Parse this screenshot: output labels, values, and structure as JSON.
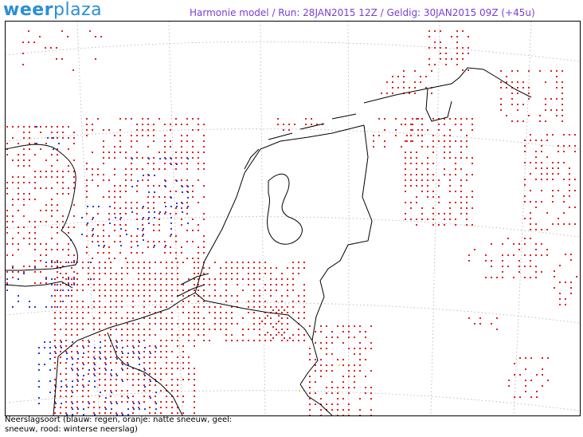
{
  "brand": {
    "part1": "weer",
    "part2": "plaza"
  },
  "header": {
    "text": "Harmonie model  /  Run: 28JAN2015  12Z  /  Geldig: 30JAN2015  09Z  (+45u)"
  },
  "legend": {
    "line1": "Neerslagsoort (blauw: regen, oranje: natte sneeuw, geel:",
    "line2": "sneeuw, rood: winterse neerslag)"
  },
  "colors": {
    "rain": "#1f3fd8",
    "sleet": "#ff9900",
    "snow": "#e8e800",
    "wintry": "#e02020",
    "coast": "#000000",
    "grid": "#b0b0b0"
  },
  "icons": [
    "weerplaza-logo"
  ]
}
